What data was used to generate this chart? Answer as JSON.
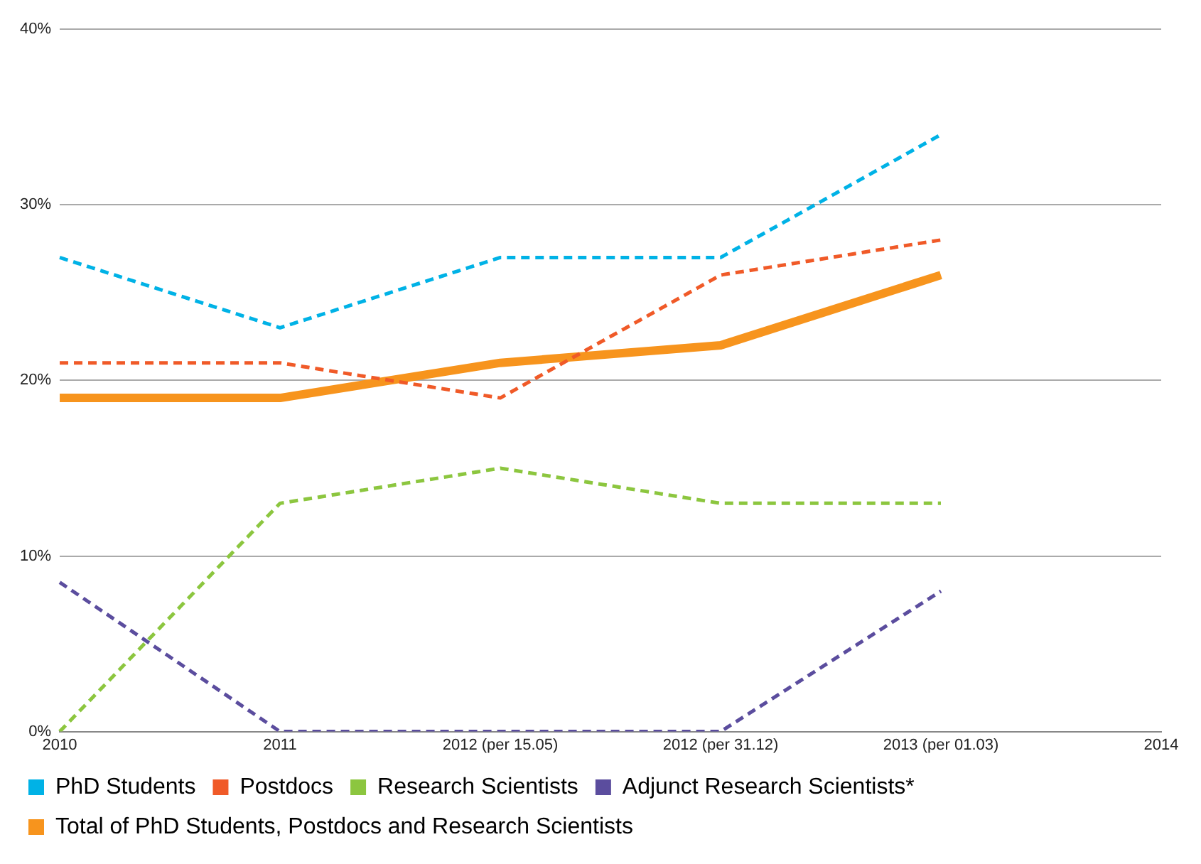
{
  "chart_data": {
    "type": "line",
    "categories": [
      "2010",
      "2011",
      "2012 (per 15.05)",
      "2012 (per 31.12)",
      "2013 (per 01.03)",
      "2014"
    ],
    "series": [
      {
        "name": "PhD Students",
        "color": "#00b2e6",
        "line_style": "dashed",
        "values": [
          27,
          23,
          27,
          27,
          34,
          null
        ]
      },
      {
        "name": "Postdocs",
        "color": "#f05a28",
        "line_style": "dashed",
        "values": [
          21,
          21,
          19,
          26,
          28,
          null
        ]
      },
      {
        "name": "Research Scientists",
        "color": "#8cc63f",
        "line_style": "dashed",
        "values": [
          0,
          13,
          15,
          13,
          13,
          null
        ]
      },
      {
        "name": "Adjunct Research Scientists*",
        "color": "#5b4d9e",
        "line_style": "dashed",
        "values": [
          8.5,
          0,
          0,
          0,
          8,
          null
        ]
      },
      {
        "name": "Total of PhD Students, Postdocs and Research Scientists",
        "color": "#f7941d",
        "line_style": "solid",
        "values": [
          19,
          19,
          21,
          22,
          26,
          null
        ]
      }
    ],
    "ylim": [
      0,
      40
    ],
    "yticks": [
      {
        "value": 0,
        "label": "0%"
      },
      {
        "value": 10,
        "label": "10%"
      },
      {
        "value": 20,
        "label": "20%"
      },
      {
        "value": 30,
        "label": "30%"
      },
      {
        "value": 40,
        "label": "40%"
      }
    ],
    "grid": "y",
    "legend": "bottom",
    "marker": "none"
  }
}
